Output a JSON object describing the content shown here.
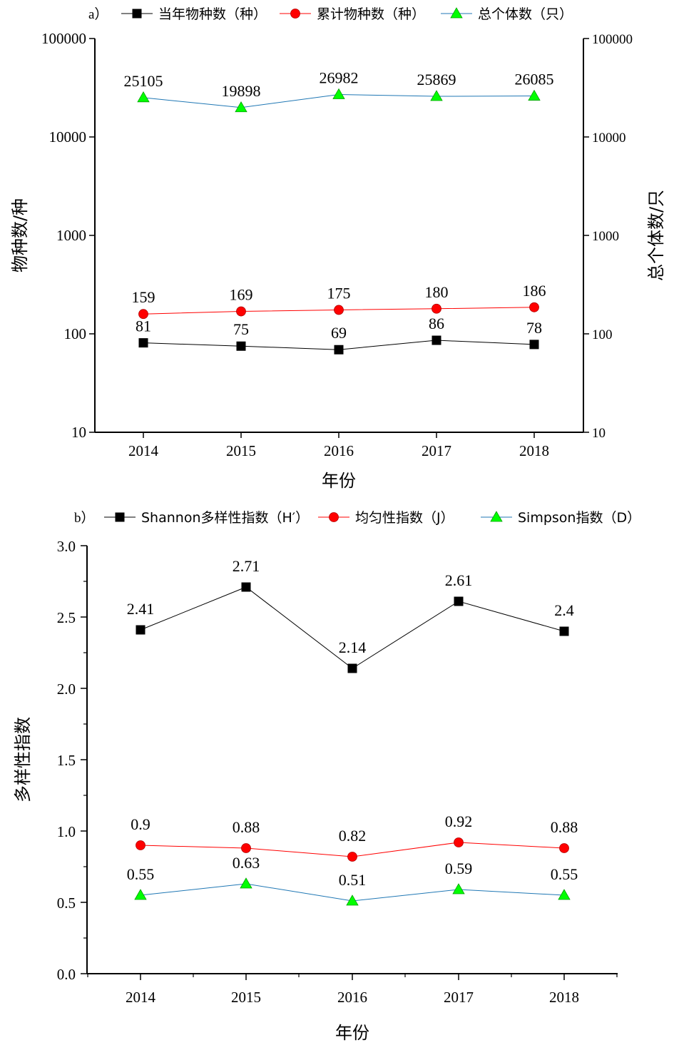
{
  "chart_data": [
    {
      "panel": "a",
      "panel_label": "a）",
      "type": "line",
      "scale": "log",
      "categories": [
        "2014",
        "2015",
        "2016",
        "2017",
        "2018"
      ],
      "series": [
        {
          "name": "当年物种数（种）",
          "axis": "left",
          "marker": "square",
          "color": "#000000",
          "line_color": "#000000",
          "values": [
            81,
            75,
            69,
            86,
            78
          ],
          "labels": [
            "81",
            "75",
            "69",
            "86",
            "78"
          ]
        },
        {
          "name": "累计物种数（种）",
          "axis": "left",
          "marker": "circle",
          "color": "#ff0000",
          "line_color": "#ff0000",
          "values": [
            159,
            169,
            175,
            180,
            186
          ],
          "labels": [
            "159",
            "169",
            "175",
            "180",
            "186"
          ]
        },
        {
          "name": "总个体数（只）",
          "axis": "right",
          "marker": "triangle",
          "color": "#00ff00",
          "line_color": "#1f77b4",
          "values": [
            25105,
            19898,
            26982,
            25869,
            26085
          ],
          "labels": [
            "25105",
            "19898",
            "26982",
            "25869",
            "26085"
          ]
        }
      ],
      "xlabel": "年份",
      "ylabel": "物种数/种",
      "ylabel_right": "总个体数/只",
      "ylim": [
        10,
        100000
      ],
      "yticks": [
        10,
        100,
        1000,
        10000,
        100000
      ],
      "ytick_labels": [
        "10",
        "100",
        "1000",
        "10000",
        "100000"
      ]
    },
    {
      "panel": "b",
      "panel_label": "b）",
      "type": "line",
      "scale": "linear",
      "categories": [
        "2014",
        "2015",
        "2016",
        "2017",
        "2018"
      ],
      "series": [
        {
          "name": "Shannon多样性指数（H′）",
          "marker": "square",
          "color": "#000000",
          "line_color": "#000000",
          "values": [
            2.41,
            2.71,
            2.14,
            2.61,
            2.4
          ],
          "labels": [
            "2.41",
            "2.71",
            "2.14",
            "2.61",
            "2.4"
          ]
        },
        {
          "name": "均匀性指数（J）",
          "marker": "circle",
          "color": "#ff0000",
          "line_color": "#ff0000",
          "values": [
            0.9,
            0.88,
            0.82,
            0.92,
            0.88
          ],
          "labels": [
            "0.9",
            "0.88",
            "0.82",
            "0.92",
            "0.88"
          ]
        },
        {
          "name": "Simpson指数（D）",
          "marker": "triangle",
          "color": "#00ff00",
          "line_color": "#1f77b4",
          "values": [
            0.55,
            0.63,
            0.51,
            0.59,
            0.55
          ],
          "labels": [
            "0.55",
            "0.63",
            "0.51",
            "0.59",
            "0.55"
          ]
        }
      ],
      "xlabel": "年份",
      "ylabel": "多样性指数",
      "ylim": [
        0,
        3
      ],
      "yticks": [
        0,
        0.5,
        1,
        1.5,
        2,
        2.5,
        3
      ],
      "ytick_labels": [
        "0.0",
        "0.5",
        "1.0",
        "1.5",
        "2.0",
        "2.5",
        "3.0"
      ]
    }
  ]
}
